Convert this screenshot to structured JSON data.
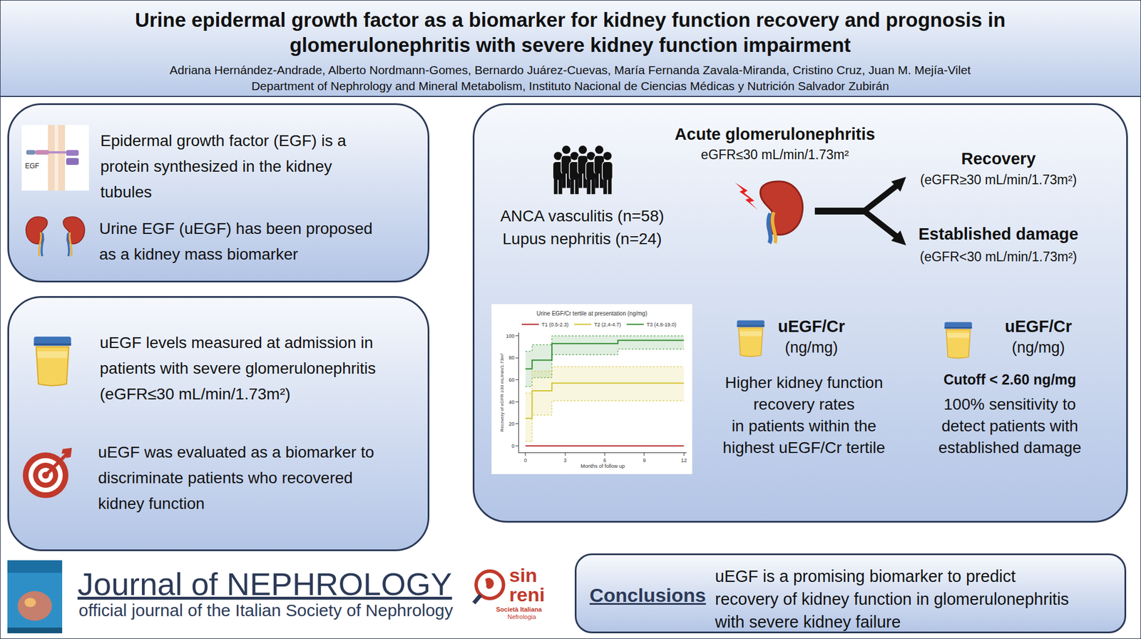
{
  "header": {
    "title_lines": [
      "Urine epidermal growth factor as a biomarker for kidney function recovery and prognosis in",
      "glomerulonephritis with severe kidney function impairment"
    ],
    "authors": "Adriana Hernández-Andrade, Alberto Nordmann-Gomes, Bernardo Juárez-Cuevas, María Fernanda Zavala-Miranda, Cristino Cruz, Juan M. Mejía-Vilet",
    "affiliation": "Department of Nephrology and Mineral Metabolism, Instituto Nacional de Ciencias Médicas y Nutrición Salvador Zubirán"
  },
  "background": {
    "icon_label": "EGF",
    "items": [
      [
        "Epidermal growth factor (EGF) is a",
        "protein synthesized in the kidney",
        "tubules"
      ],
      [
        "Urine EGF (uEGF) has been proposed",
        "as a kidney mass biomarker"
      ]
    ]
  },
  "methods": {
    "items": [
      [
        "uEGF levels measured at admission in",
        "patients with severe glomerulonephritis",
        "(eGFR≤30 mL/min/1.73m²)"
      ],
      [
        "uEGF was evaluated as a biomarker to",
        "discriminate patients who recovered",
        "kidney function"
      ]
    ]
  },
  "cohort": {
    "title": "Acute glomerulonephritis",
    "criterion": "eGFR≤30 mL/min/1.73m²",
    "groups": [
      "ANCA vasculitis (n=58)",
      "Lupus nephritis (n=24)"
    ]
  },
  "outcomes": [
    {
      "title": "Recovery",
      "criterion": "(eGFR≥30 mL/min/1.73m²)"
    },
    {
      "title": "Established damage",
      "criterion": "(eGFR<30 mL/min/1.73m²)"
    }
  ],
  "findings": [
    {
      "title": "uEGF/Cr",
      "unit": "(ng/mg)",
      "lines": [
        "Higher kidney function",
        "recovery rates",
        "in patients within the",
        "highest uEGF/Cr tertile"
      ]
    },
    {
      "title": "uEGF/Cr",
      "unit": "(ng/mg)",
      "cutoff": "Cutoff < 2.60 ng/mg",
      "lines": [
        "100% sensitivity to",
        "detect patients with",
        "established damage"
      ]
    }
  ],
  "footer": {
    "journal": "Journal of NEPHROLOGY",
    "subtitle": "official journal of the Italian Society of Nephrology",
    "society_logo": [
      "sin",
      "reni",
      "Società Italiana",
      "Nefrologia"
    ]
  },
  "conclusions": {
    "label": "Conclusions",
    "lines": [
      "uEGF is a promising biomarker to predict",
      "recovery of kidney function in glomerulonephritis",
      "with severe kidney failure"
    ]
  },
  "chart_data": {
    "type": "step",
    "title": "Urine EGF/Cr tertile at presentation (ng/mg)",
    "x_label": "Months of follow up",
    "y_label": "Recovery of eGFR ≥30 mL/min/1.73m²",
    "xlim": [
      -0.5,
      12.2
    ],
    "xticks": [
      0,
      3,
      6,
      9,
      12
    ],
    "ylim": [
      -6,
      103
    ],
    "yticks": [
      0,
      20,
      40,
      60,
      80,
      100
    ],
    "grid": false,
    "legend": "top",
    "series": [
      {
        "name": "T3 (4.8-19.0)",
        "color": "#2e8b2e",
        "line_style": "solid",
        "x": [
          0,
          0.5,
          2,
          7,
          12
        ],
        "values": [
          70,
          78,
          93,
          96,
          96
        ],
        "ci_lower": [
          54,
          62,
          83,
          88,
          88
        ],
        "ci_upper": [
          86,
          92,
          100,
          100,
          100
        ]
      },
      {
        "name": "T2 (2.4-4.7)",
        "color": "#d2c12b",
        "line_style": "solid",
        "x": [
          0,
          0.5,
          2,
          12
        ],
        "values": [
          25,
          50,
          57,
          57
        ],
        "ci_lower": [
          4,
          28,
          41,
          41
        ],
        "ci_upper": [
          48,
          68,
          72,
          72
        ]
      },
      {
        "name": "T1 (0.5-2.3)",
        "color": "#b22222",
        "line_style": "solid",
        "x": [
          0,
          12
        ],
        "values": [
          0,
          0
        ]
      }
    ]
  }
}
